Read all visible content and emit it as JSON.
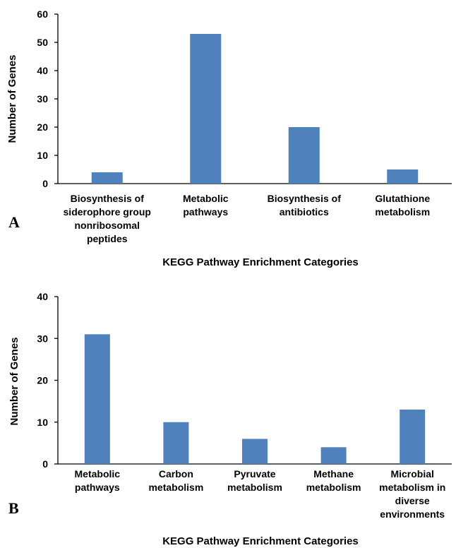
{
  "chart_data": [
    {
      "type": "bar",
      "panel_label": "A",
      "categories": [
        "Biosynthesis of siderophore group nonribosomal peptides",
        "Metabolic pathways",
        "Biosynthesis of antibiotics",
        "Glutathione metabolism"
      ],
      "category_lines": [
        [
          "Biosynthesis of",
          "siderophore group",
          "nonribosomal",
          "peptides"
        ],
        [
          "Metabolic",
          "pathways"
        ],
        [
          "Biosynthesis of",
          "antibiotics"
        ],
        [
          "Glutathione",
          "metabolism"
        ]
      ],
      "values": [
        4,
        53,
        20,
        5
      ],
      "xlabel": "KEGG Pathway Enrichment Categories",
      "ylabel": "Number of Genes",
      "ylim": [
        0,
        60
      ],
      "yticks": [
        0,
        10,
        20,
        30,
        40,
        50,
        60
      ],
      "grid": false,
      "bar_color": "#4f81bd"
    },
    {
      "type": "bar",
      "panel_label": "B",
      "categories": [
        "Metabolic pathways",
        "Carbon metabolism",
        "Pyruvate metabolism",
        "Methane metabolism",
        "Microbial metabolism in diverse environments"
      ],
      "category_lines": [
        [
          "Metabolic",
          "pathways"
        ],
        [
          "Carbon",
          "metabolism"
        ],
        [
          "Pyruvate",
          "metabolism"
        ],
        [
          "Methane",
          "metabolism"
        ],
        [
          "Microbial",
          "metabolism in",
          "diverse",
          "environments"
        ]
      ],
      "values": [
        31,
        10,
        6,
        4,
        13
      ],
      "xlabel": "KEGG Pathway Enrichment Categories",
      "ylabel": "Number of Genes",
      "ylim": [
        0,
        40
      ],
      "yticks": [
        0,
        10,
        20,
        30,
        40
      ],
      "grid": false,
      "bar_color": "#4f81bd"
    }
  ]
}
